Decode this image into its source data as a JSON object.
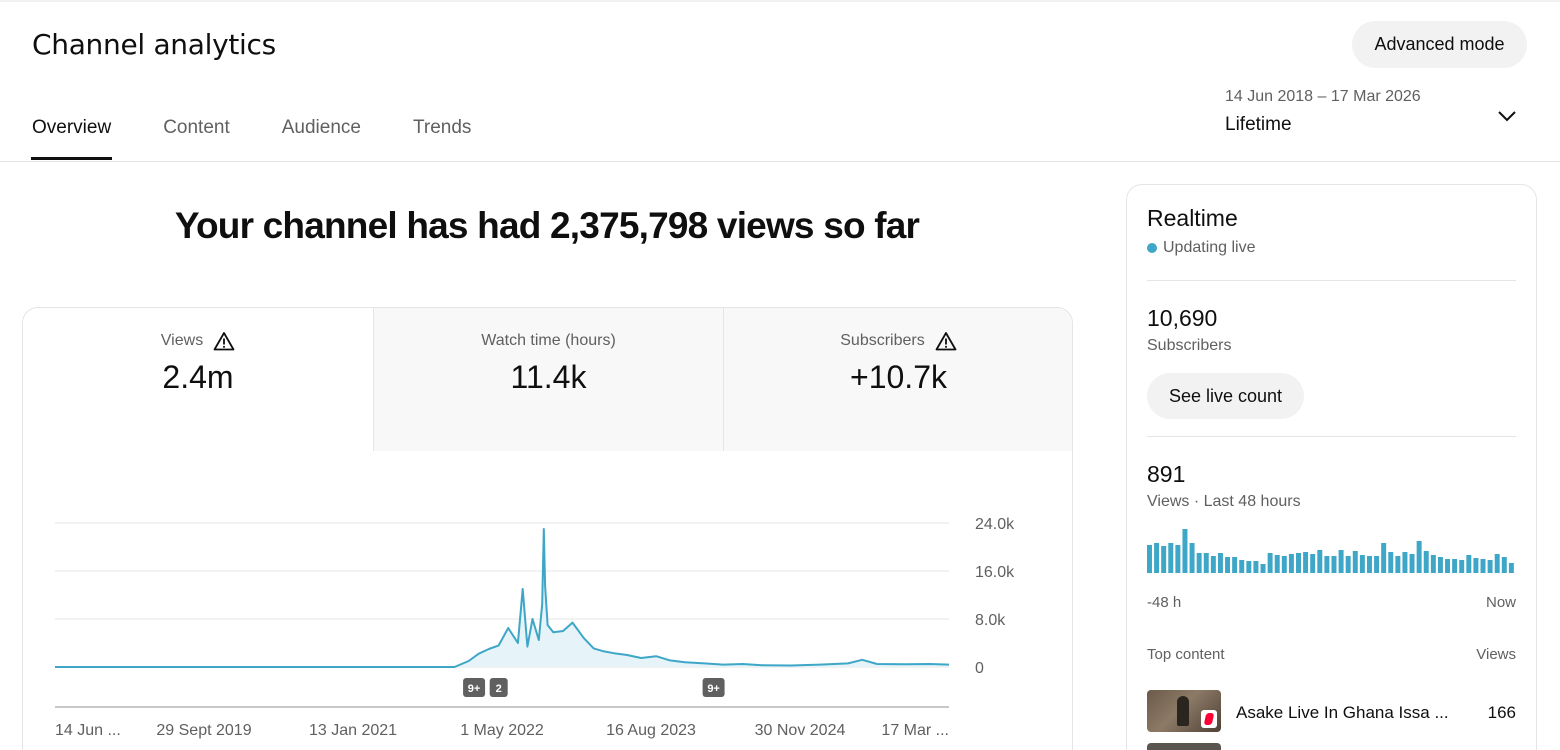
{
  "header": {
    "title": "Channel analytics",
    "advanced_mode_label": "Advanced mode"
  },
  "tabs": [
    {
      "label": "Overview",
      "active": true
    },
    {
      "label": "Content",
      "active": false
    },
    {
      "label": "Audience",
      "active": false
    },
    {
      "label": "Trends",
      "active": false
    }
  ],
  "date_picker": {
    "range": "14 Jun 2018 – 17 Mar 2026",
    "label": "Lifetime",
    "icon": "chevron-down-icon"
  },
  "headline": "Your channel has had 2,375,798 views so far",
  "metrics": [
    {
      "label": "Views",
      "value": "2.4m",
      "warning": true,
      "selected": true
    },
    {
      "label": "Watch time (hours)",
      "value": "11.4k",
      "warning": false,
      "selected": false
    },
    {
      "label": "Subscribers",
      "value": "+10.7k",
      "warning": true,
      "selected": false
    }
  ],
  "chart_data": {
    "type": "area",
    "series": [
      {
        "x": [
          "2018-06-14",
          "2021-12-01",
          "2022-01-15",
          "2022-02-15",
          "2022-03-20",
          "2022-04-20",
          "2022-05-20",
          "2022-06-20",
          "2022-07-05",
          "2022-07-20",
          "2022-08-05",
          "2022-08-25",
          "2022-09-05",
          "2022-09-10",
          "2022-09-14",
          "2022-09-22",
          "2022-10-10",
          "2022-11-10",
          "2022-12-10",
          "2023-01-15",
          "2023-02-15",
          "2023-03-20",
          "2023-04-20",
          "2023-06-01",
          "2023-07-15",
          "2023-09-01",
          "2023-10-15",
          "2023-12-01",
          "2024-02-01",
          "2024-04-01",
          "2024-06-01",
          "2024-08-01",
          "2024-11-01",
          "2025-02-01",
          "2025-05-01",
          "2025-06-15",
          "2025-08-01",
          "2025-11-01",
          "2026-01-15",
          "2026-03-17"
        ],
        "values": [
          0,
          0,
          1000,
          2200,
          3000,
          3600,
          6500,
          4000,
          13000,
          3400,
          8000,
          4500,
          10500,
          23000,
          13500,
          7000,
          5800,
          6000,
          7400,
          4800,
          3100,
          2600,
          2300,
          2000,
          1500,
          1800,
          1100,
          800,
          600,
          400,
          500,
          300,
          250,
          400,
          600,
          1200,
          500,
          450,
          500,
          400
        ]
      }
    ],
    "xticks": [
      "14 Jun ...",
      "29 Sept 2019",
      "13 Jan 2021",
      "1 May 2022",
      "16 Aug 2023",
      "30 Nov 2024",
      "17 Mar ..."
    ],
    "yticks": [
      "24.0k",
      "16.0k",
      "8.0k",
      "0"
    ],
    "ylim": [
      0,
      24000
    ],
    "grid": true,
    "annotations": [
      {
        "x": "2022-02-01",
        "label": "9+"
      },
      {
        "x": "2022-04-20",
        "label": "2"
      },
      {
        "x": "2024-03-01",
        "label": "9+"
      }
    ],
    "colors": {
      "line": "#3ea6c6",
      "fill": "#e6f4f9",
      "badge": "#606060"
    }
  },
  "realtime": {
    "title": "Realtime",
    "status": "Updating live",
    "live_color": "#3ea6c6",
    "subscribers_value": "10,690",
    "subscribers_label": "Subscribers",
    "live_count_label": "See live count",
    "views_value": "891",
    "views_label": "Views · Last 48 hours",
    "hourly_views": [
      28,
      30,
      27,
      30,
      28,
      44,
      30,
      20,
      20,
      17,
      20,
      16,
      16,
      13,
      12,
      12,
      9,
      20,
      18,
      17,
      19,
      20,
      21,
      19,
      23,
      17,
      17,
      23,
      17,
      22,
      18,
      17,
      17,
      30,
      21,
      17,
      21,
      19,
      32,
      22,
      18,
      16,
      14,
      14,
      13,
      18,
      15,
      14,
      13,
      19,
      16,
      10
    ],
    "axis_start": "-48 h",
    "axis_end": "Now",
    "top_content_label": "Top content",
    "top_views_label": "Views",
    "top_content": [
      {
        "title": "Asake Live In Ghana Issa ...",
        "views": "166"
      }
    ]
  }
}
